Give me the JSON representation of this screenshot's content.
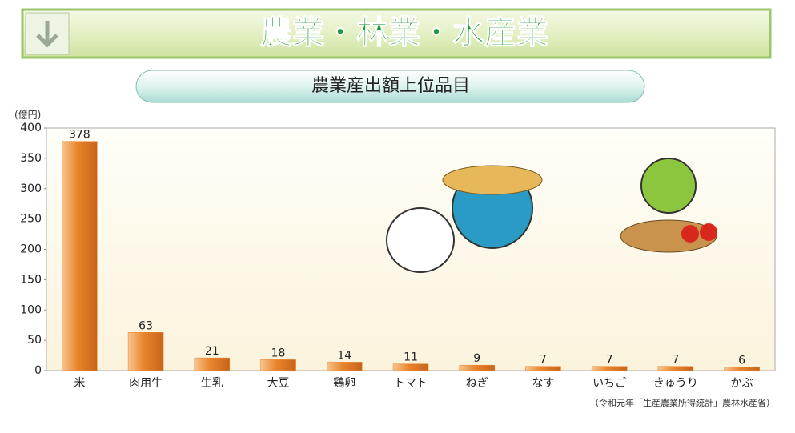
{
  "header": {
    "title": "農業・林業・水産業"
  },
  "chart_data": {
    "type": "bar",
    "title": "農業産出額上位品目",
    "y_label": "(億円)",
    "categories": [
      "米",
      "肉用牛",
      "生乳",
      "大豆",
      "鶏卵",
      "トマト",
      "ねぎ",
      "なす",
      "いちご",
      "きゅうり",
      "かぶ"
    ],
    "values": [
      378,
      63,
      21,
      18,
      14,
      11,
      9,
      7,
      7,
      7,
      6
    ],
    "color": "#e8842c",
    "ylim": [
      0,
      400
    ],
    "yticks": [
      0,
      50,
      100,
      150,
      200,
      250,
      300,
      350,
      400
    ],
    "source": "（令和元年「生産農業所得統計」農林水産省）"
  }
}
